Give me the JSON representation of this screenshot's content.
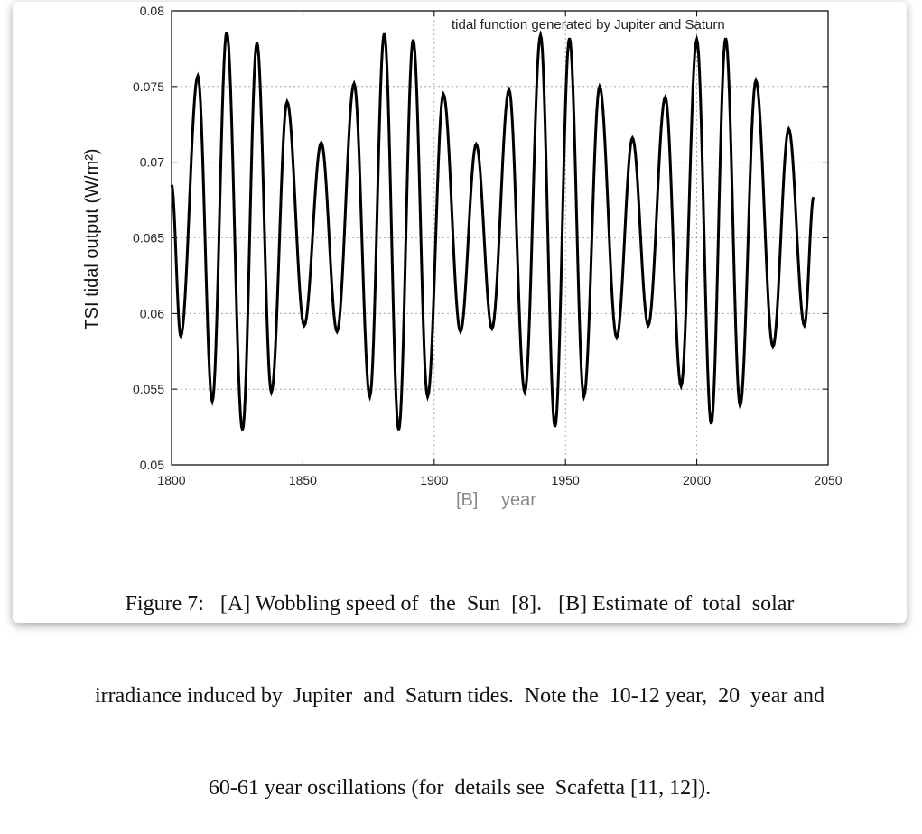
{
  "chart_data": {
    "type": "line",
    "annotation": "tidal function generated by Jupiter and Saturn",
    "ylabel": "TSI tidal output (W/m²)",
    "xlabel_panel": "[B]",
    "xlabel": "year",
    "xlim": [
      1800,
      2050
    ],
    "ylim": [
      0.05,
      0.08
    ],
    "x_ticks": [
      1800,
      1850,
      1900,
      1950,
      2000,
      2050
    ],
    "y_ticks": [
      "0.05",
      "0.055",
      "0.06",
      "0.065",
      "0.07",
      "0.075",
      "0.08"
    ],
    "grid": true,
    "series": [
      {
        "x": [
          1800,
          1803.5,
          1810,
          1815.5,
          1821,
          1827,
          1832.5,
          1838,
          1844,
          1850.5,
          1857,
          1863,
          1869.5,
          1875.5,
          1881,
          1886.5,
          1892,
          1897.5,
          1903.5,
          1910,
          1916,
          1922,
          1928.5,
          1934.5,
          1940.5,
          1946,
          1951.5,
          1957,
          1963,
          1969.5,
          1975.5,
          1981.5,
          1988,
          1994,
          2000,
          2005.5,
          2011,
          2016.5,
          2022.5,
          2029,
          2035,
          2041,
          2044.5
        ],
        "y": [
          0.0685,
          0.0585,
          0.0757,
          0.0542,
          0.0786,
          0.0523,
          0.0779,
          0.0548,
          0.074,
          0.0592,
          0.0713,
          0.0588,
          0.0752,
          0.0545,
          0.0785,
          0.0523,
          0.0781,
          0.0545,
          0.0745,
          0.0588,
          0.0712,
          0.059,
          0.0748,
          0.0548,
          0.0784,
          0.0525,
          0.0782,
          0.0545,
          0.075,
          0.0584,
          0.0716,
          0.0592,
          0.0743,
          0.0552,
          0.0781,
          0.0527,
          0.0782,
          0.0539,
          0.0754,
          0.0578,
          0.0722,
          0.0592,
          0.0677
        ]
      }
    ]
  },
  "caption": {
    "line1": "Figure 7:   [A] Wobbling speed of  the  Sun  [8].   [B] Estimate of  total  solar",
    "line2": "irradiance induced by  Jupiter  and  Saturn tides.  Note the  10-12 year,  20  year and",
    "line3": "60-61 year oscillations (for  details see  Scafetta [11, 12])."
  },
  "colors": {
    "line": "#000000",
    "grid": "#9a9a9a",
    "axis_label_b": "#8a8a8a"
  }
}
